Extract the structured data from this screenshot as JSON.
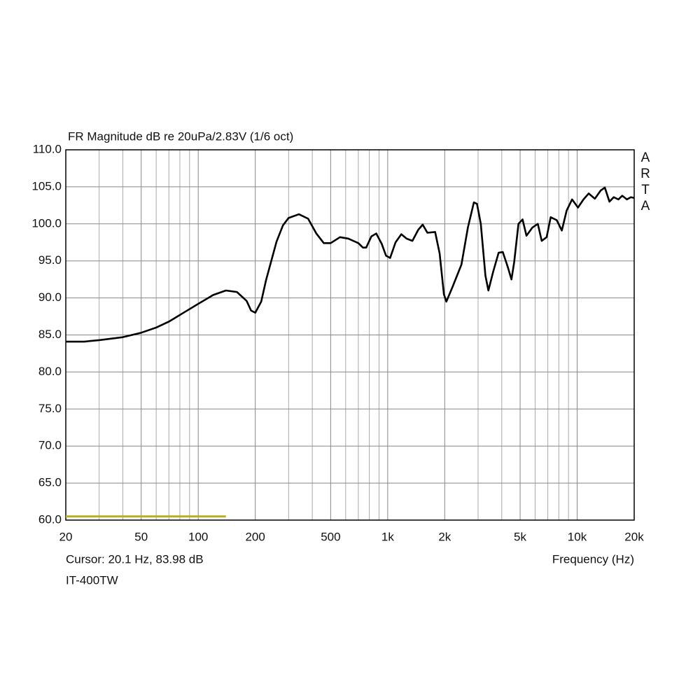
{
  "chart_data": {
    "type": "line",
    "title": "FR Magnitude dB re 20uPa/2.83V (1/6 oct)",
    "xlabel": "Frequency (Hz)",
    "cursor": "Cursor: 20.1 Hz, 83.98 dB",
    "caption": "IT-400TW",
    "watermark": "ARTA",
    "xscale": "log",
    "grid": true,
    "xlim": [
      20,
      20000
    ],
    "ylim": [
      60,
      110
    ],
    "xticks": [
      20,
      50,
      100,
      200,
      500,
      {
        "value": 1000,
        "label": "1k"
      },
      {
        "value": 2000,
        "label": "2k"
      },
      {
        "value": 5000,
        "label": "5k"
      },
      {
        "value": 10000,
        "label": "10k"
      },
      {
        "value": 20000,
        "label": "20k"
      }
    ],
    "xminorticks": [
      30,
      40,
      60,
      70,
      80,
      90,
      300,
      400,
      600,
      700,
      800,
      900,
      3000,
      4000,
      6000,
      7000,
      8000,
      9000
    ],
    "yticks": [
      {
        "value": 60,
        "label": "60.0"
      },
      {
        "value": 65,
        "label": "65.0"
      },
      {
        "value": 70,
        "label": "70.0"
      },
      {
        "value": 75,
        "label": "75.0"
      },
      {
        "value": 80,
        "label": "80.0"
      },
      {
        "value": 85,
        "label": "85.0"
      },
      {
        "value": 90,
        "label": "90.0"
      },
      {
        "value": 95,
        "label": "95.0"
      },
      {
        "value": 100,
        "label": "100.0"
      },
      {
        "value": 105,
        "label": "105.0"
      },
      {
        "value": 110,
        "label": "110.0"
      }
    ],
    "color": "#000000",
    "x": [
      20,
      25,
      30,
      40,
      50,
      60,
      70,
      80,
      100,
      120,
      140,
      160,
      180,
      190,
      200,
      215,
      228,
      259,
      280,
      300,
      340,
      380,
      420,
      460,
      500,
      560,
      620,
      700,
      740,
      770,
      820,
      870,
      930,
      980,
      1030,
      1100,
      1180,
      1260,
      1350,
      1450,
      1530,
      1620,
      1780,
      1880,
      1980,
      2040,
      2200,
      2450,
      2650,
      2850,
      2960,
      3100,
      3280,
      3400,
      3600,
      3850,
      4050,
      4300,
      4500,
      4650,
      4900,
      5150,
      5400,
      5800,
      6200,
      6500,
      6900,
      7250,
      7800,
      8300,
      8800,
      9400,
      10100,
      10800,
      11500,
      12400,
      13300,
      14000,
      14800,
      15600,
      16500,
      17300,
      18300,
      19200,
      20000
    ],
    "values": [
      84.1,
      84.1,
      84.3,
      84.7,
      85.3,
      86.0,
      86.8,
      87.7,
      89.2,
      90.4,
      91.0,
      90.8,
      89.6,
      88.3,
      88.0,
      89.5,
      92.4,
      97.6,
      99.8,
      100.8,
      101.3,
      100.7,
      98.7,
      97.4,
      97.4,
      98.2,
      98.0,
      97.4,
      96.8,
      96.8,
      98.3,
      98.7,
      97.3,
      95.7,
      95.4,
      97.5,
      98.6,
      98.0,
      97.7,
      99.2,
      99.9,
      98.8,
      98.9,
      96.0,
      90.5,
      89.5,
      91.5,
      94.5,
      99.5,
      102.9,
      102.7,
      100.0,
      93.0,
      91.0,
      93.5,
      96.1,
      96.2,
      94.2,
      92.5,
      94.8,
      100.0,
      100.6,
      98.4,
      99.5,
      100.0,
      97.7,
      98.2,
      100.9,
      100.5,
      99.1,
      101.8,
      103.3,
      102.2,
      103.3,
      104.1,
      103.4,
      104.5,
      104.9,
      103.0,
      103.6,
      103.3,
      103.8,
      103.3,
      103.6,
      103.5
    ],
    "annotation_line": {
      "x": [
        20,
        140
      ],
      "y": [
        60.5,
        60.5
      ],
      "color": "#b8b020"
    }
  }
}
